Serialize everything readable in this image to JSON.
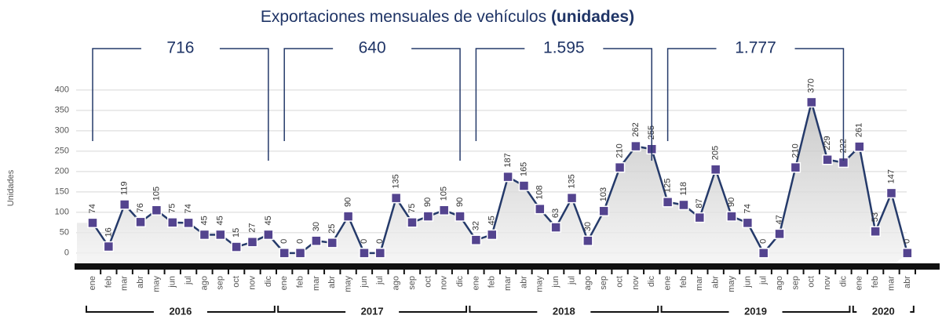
{
  "chart_data": {
    "type": "line",
    "title": "Exportaciones mensuales de vehículos",
    "title_bold": "(unidades)",
    "y_label": "Unidades",
    "categories": [
      "ene",
      "feb",
      "mar",
      "abr",
      "may",
      "jun",
      "jul",
      "ago",
      "sep",
      "oct",
      "nov",
      "dic",
      "ene",
      "feb",
      "mar",
      "abr",
      "may",
      "jun",
      "jul",
      "ago",
      "sep",
      "oct",
      "nov",
      "dic",
      "ene",
      "feb",
      "mar",
      "abr",
      "may",
      "jun",
      "jul",
      "ago",
      "sep",
      "oct",
      "nov",
      "dic",
      "ene",
      "feb",
      "mar",
      "abr",
      "may",
      "jun",
      "jul",
      "ago",
      "sep",
      "oct",
      "nov",
      "dic",
      "ene",
      "feb",
      "mar",
      "abr"
    ],
    "series": [
      {
        "name": "Unidades",
        "color": "#253a6a",
        "marker_color": "#54448f",
        "values": [
          74,
          16,
          119,
          76,
          105,
          75,
          74,
          45,
          45,
          15,
          27,
          45,
          0,
          0,
          30,
          25,
          90,
          0,
          0,
          135,
          75,
          90,
          105,
          90,
          32,
          45,
          187,
          165,
          108,
          63,
          135,
          30,
          103,
          210,
          262,
          255,
          125,
          118,
          87,
          205,
          90,
          74,
          0,
          47,
          210,
          370,
          229,
          222,
          261,
          53,
          147,
          0
        ]
      }
    ],
    "groups": [
      {
        "label": "2016",
        "total": "716",
        "start": 0,
        "end": 11
      },
      {
        "label": "2017",
        "total": "640",
        "start": 12,
        "end": 23
      },
      {
        "label": "2018",
        "total": "1.595",
        "start": 24,
        "end": 35
      },
      {
        "label": "2019",
        "total": "1.777",
        "start": 36,
        "end": 47
      },
      {
        "label": "2020",
        "start": 48,
        "end": 51
      }
    ],
    "ylim": [
      -33,
      420
    ],
    "yticks": [
      0,
      50,
      100,
      150,
      200,
      250,
      300,
      350,
      400
    ],
    "grid": true
  }
}
